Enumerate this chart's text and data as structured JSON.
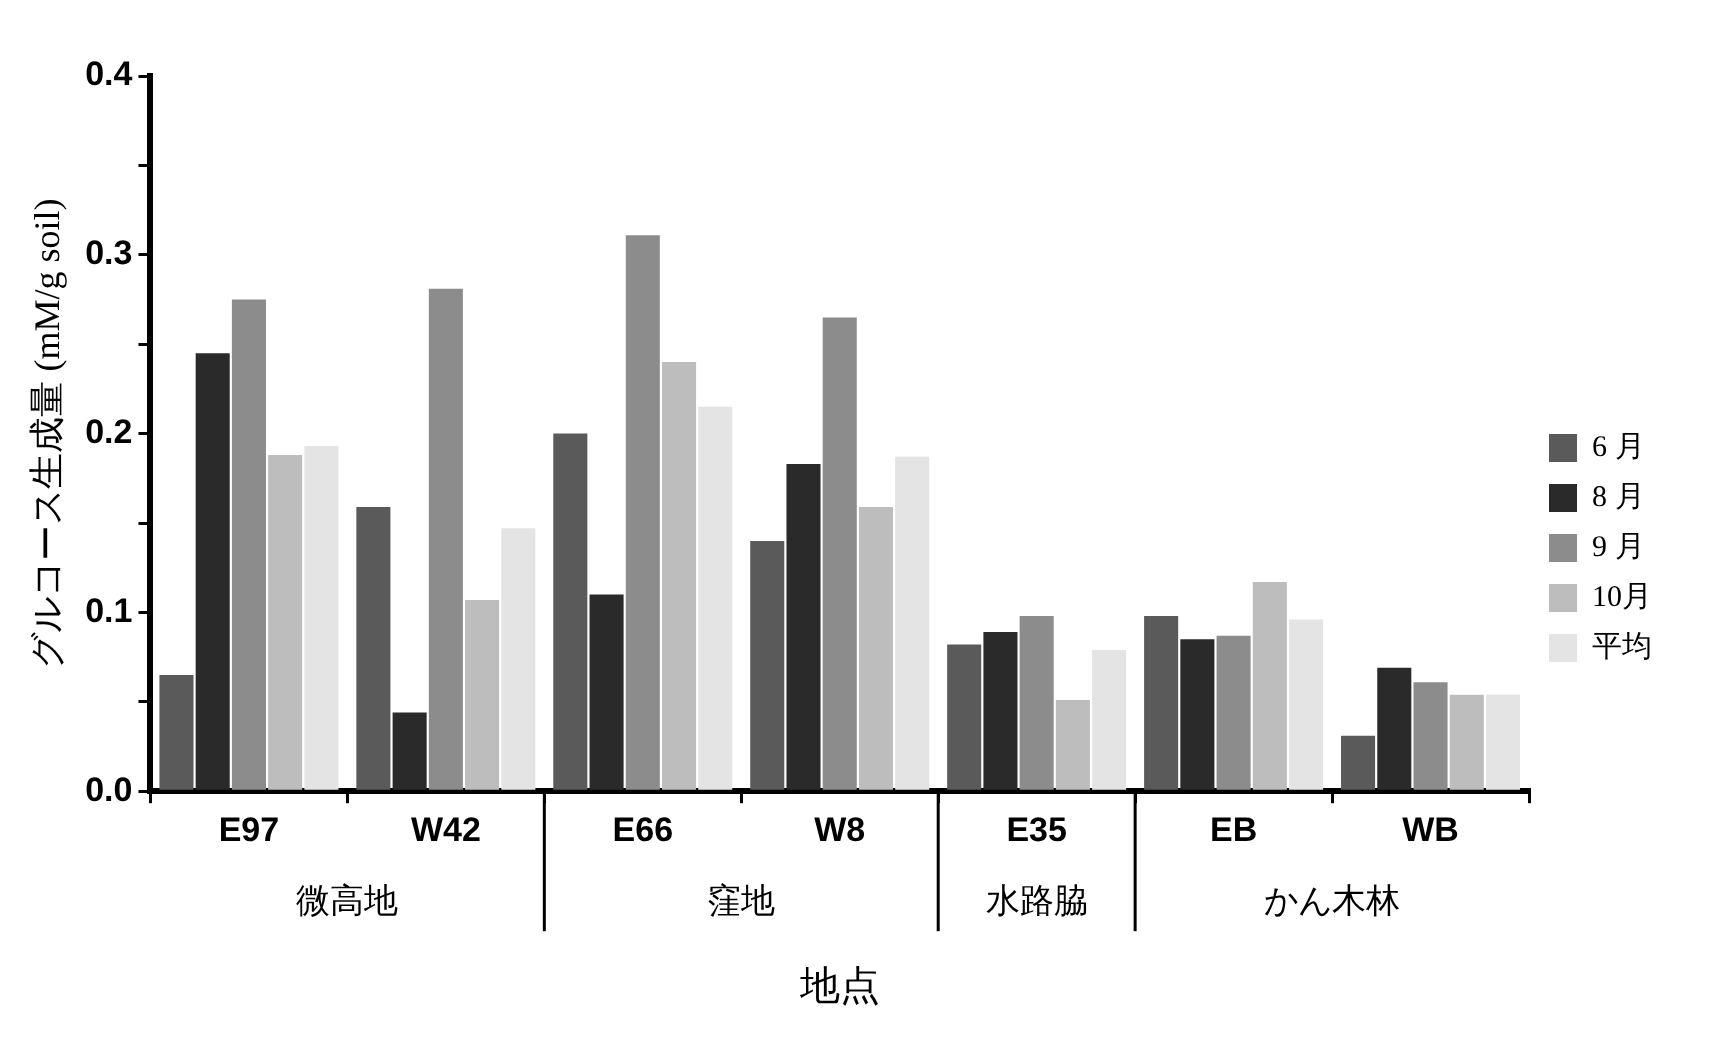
{
  "chart_data": {
    "type": "bar",
    "xlabel": "地点",
    "ylabel": "グルコース生成量 (mM/g soil)",
    "categories": [
      "E97",
      "W42",
      "E66",
      "W8",
      "E35",
      "EB",
      "WB"
    ],
    "series": [
      {
        "name": "6 月",
        "color": "#5a5a5a",
        "values": [
          0.065,
          0.159,
          0.2,
          0.14,
          0.082,
          0.098,
          0.031
        ]
      },
      {
        "name": "8 月",
        "color": "#2a2a2a",
        "values": [
          0.245,
          0.044,
          0.11,
          0.183,
          0.089,
          0.085,
          0.069
        ]
      },
      {
        "name": "9 月",
        "color": "#8c8c8c",
        "values": [
          0.275,
          0.281,
          0.311,
          0.265,
          0.098,
          0.087,
          0.061
        ]
      },
      {
        "name": "10月",
        "color": "#bdbdbd",
        "values": [
          0.188,
          0.107,
          0.24,
          0.159,
          0.051,
          0.117,
          0.054
        ]
      },
      {
        "name": "平均",
        "color": "#e4e4e4",
        "values": [
          0.193,
          0.147,
          0.215,
          0.187,
          0.079,
          0.096,
          0.054
        ]
      }
    ],
    "ylim": [
      0,
      0.4
    ],
    "yticks": [
      {
        "value": 0,
        "label": "0.0"
      },
      {
        "value": 0.05,
        "label": null
      },
      {
        "value": 0.1,
        "label": "0.1"
      },
      {
        "value": 0.15,
        "label": null
      },
      {
        "value": 0.2,
        "label": "0.2"
      },
      {
        "value": 0.25,
        "label": null
      },
      {
        "value": 0.3,
        "label": "0.3"
      },
      {
        "value": 0.35,
        "label": null
      },
      {
        "value": 0.4,
        "label": "0.4"
      }
    ],
    "annotations": [
      "微高地",
      "窪地",
      "水路脇",
      "かん木林"
    ],
    "legend": "right",
    "grid": false
  }
}
